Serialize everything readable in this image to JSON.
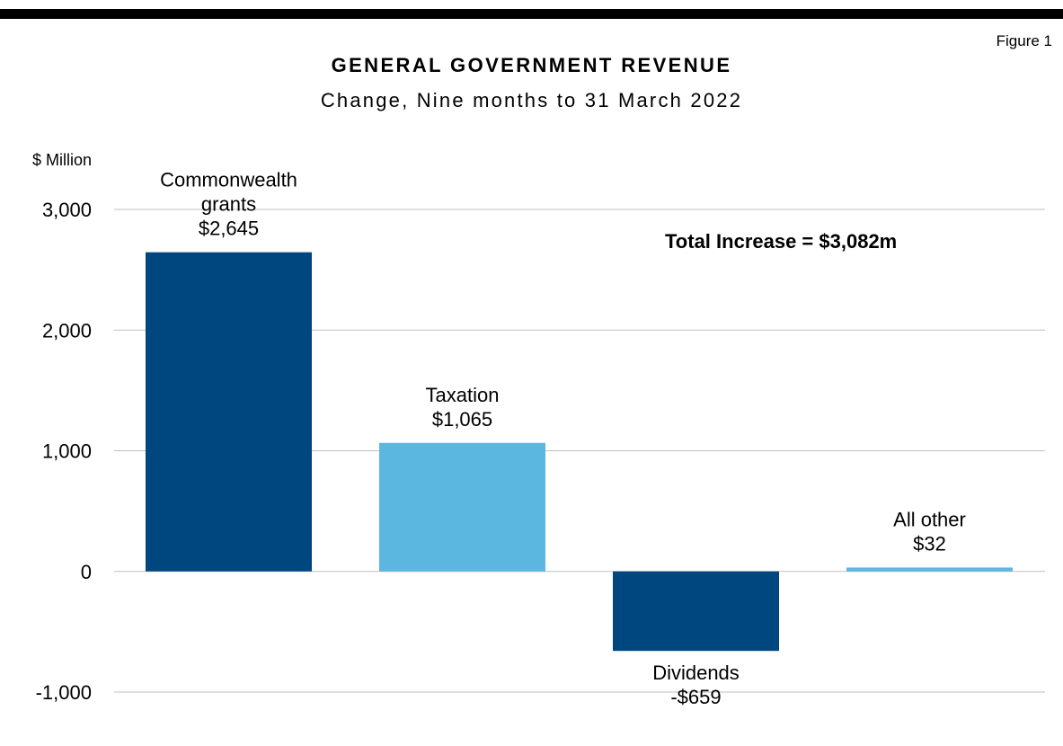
{
  "figure_label": "Figure 1",
  "chart_data": {
    "type": "bar",
    "title": "GENERAL GOVERNMENT REVENUE",
    "subtitle": "Change, Nine months to 31 March 2022",
    "ylabel": "$ Million",
    "xlabel": "",
    "ylim": [
      -1000,
      3000
    ],
    "yticks": [
      3000,
      2000,
      1000,
      0,
      -1000
    ],
    "ytick_labels": [
      "3,000",
      "2,000",
      "1,000",
      "0",
      "-1,000"
    ],
    "grid": true,
    "categories": [
      "Commonwealth grants",
      "Taxation",
      "Dividends",
      "All other"
    ],
    "values": [
      2645,
      1065,
      -659,
      32
    ],
    "category_label_lines": [
      [
        "Commonwealth",
        "grants"
      ],
      [
        "Taxation"
      ],
      [
        "Dividends"
      ],
      [
        "All other"
      ]
    ],
    "value_labels": [
      "$2,645",
      "$1,065",
      "-$659",
      "$32"
    ],
    "colors": [
      "#00467F",
      "#5BB6E0",
      "#00467F",
      "#5BB6E0"
    ],
    "annotation": "Total Increase = $3,082m"
  }
}
